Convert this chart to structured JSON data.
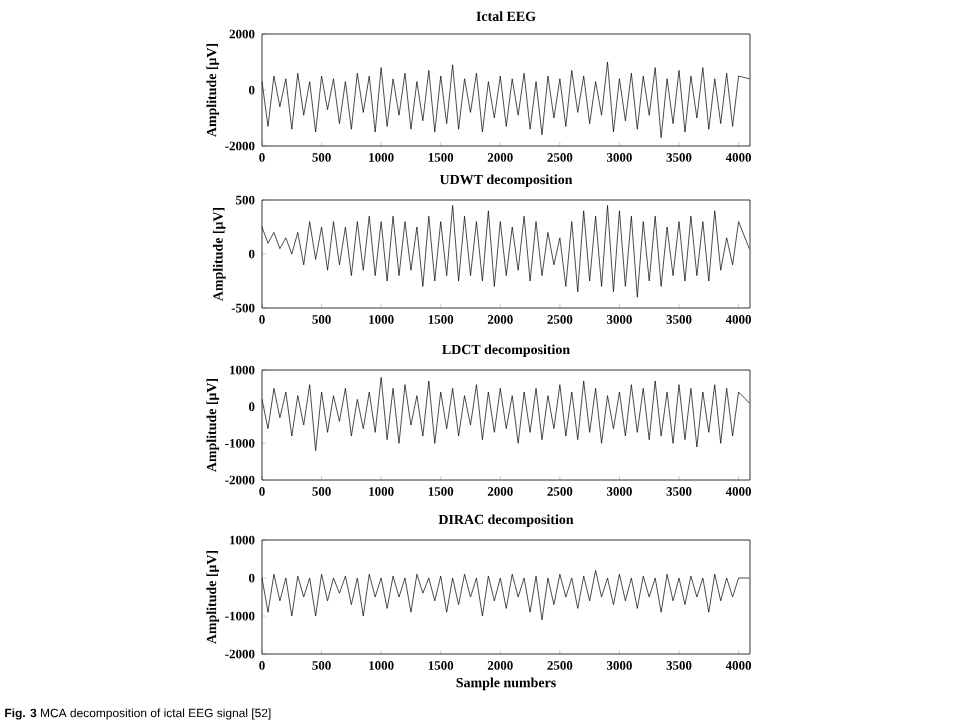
{
  "chart_data": [
    {
      "type": "line",
      "title": "Ictal EEG",
      "ylabel": "Amplitude [μV]",
      "color": "#000000",
      "xlim": [
        0,
        4096
      ],
      "ylim": [
        -2000,
        2000
      ],
      "xticks": [
        0,
        500,
        1000,
        1500,
        2000,
        2500,
        3000,
        3500,
        4000
      ],
      "yticks": [
        -2000,
        0,
        2000
      ],
      "x": [
        0,
        50,
        100,
        150,
        200,
        250,
        300,
        350,
        400,
        450,
        500,
        550,
        600,
        650,
        700,
        750,
        800,
        850,
        900,
        950,
        1000,
        1050,
        1100,
        1150,
        1200,
        1250,
        1300,
        1350,
        1400,
        1450,
        1500,
        1550,
        1600,
        1650,
        1700,
        1750,
        1800,
        1850,
        1900,
        1950,
        2000,
        2050,
        2100,
        2150,
        2200,
        2250,
        2300,
        2350,
        2400,
        2450,
        2500,
        2550,
        2600,
        2650,
        2700,
        2750,
        2800,
        2850,
        2900,
        2950,
        3000,
        3050,
        3100,
        3150,
        3200,
        3250,
        3300,
        3350,
        3400,
        3450,
        3500,
        3550,
        3600,
        3650,
        3700,
        3750,
        3800,
        3850,
        3900,
        3950,
        4000,
        4090
      ],
      "values": [
        300,
        -1300,
        500,
        -600,
        400,
        -1400,
        600,
        -900,
        300,
        -1500,
        500,
        -700,
        400,
        -1200,
        300,
        -1400,
        600,
        -800,
        500,
        -1500,
        800,
        -1300,
        400,
        -900,
        600,
        -1400,
        300,
        -1100,
        700,
        -1500,
        500,
        -1200,
        900,
        -1400,
        400,
        -800,
        600,
        -1500,
        300,
        -1000,
        500,
        -1300,
        400,
        -900,
        600,
        -1400,
        300,
        -1600,
        500,
        -1000,
        400,
        -1300,
        700,
        -800,
        500,
        -1200,
        300,
        -900,
        1000,
        -1500,
        400,
        -1100,
        600,
        -1400,
        500,
        -900,
        800,
        -1700,
        400,
        -1200,
        700,
        -1500,
        500,
        -1000,
        800,
        -1400,
        400,
        -1200,
        600,
        -1300,
        500,
        400
      ]
    },
    {
      "type": "line",
      "title": "UDWT decomposition",
      "ylabel": "Amplitude [μV]",
      "color": "#000000",
      "xlim": [
        0,
        4096
      ],
      "ylim": [
        -500,
        500
      ],
      "xticks": [
        0,
        500,
        1000,
        1500,
        2000,
        2500,
        3000,
        3500,
        4000
      ],
      "yticks": [
        -500,
        0,
        500
      ],
      "x": [
        0,
        50,
        100,
        150,
        200,
        250,
        300,
        350,
        400,
        450,
        500,
        550,
        600,
        650,
        700,
        750,
        800,
        850,
        900,
        950,
        1000,
        1050,
        1100,
        1150,
        1200,
        1250,
        1300,
        1350,
        1400,
        1450,
        1500,
        1550,
        1600,
        1650,
        1700,
        1750,
        1800,
        1850,
        1900,
        1950,
        2000,
        2050,
        2100,
        2150,
        2200,
        2250,
        2300,
        2350,
        2400,
        2450,
        2500,
        2550,
        2600,
        2650,
        2700,
        2750,
        2800,
        2850,
        2900,
        2950,
        3000,
        3050,
        3100,
        3150,
        3200,
        3250,
        3300,
        3350,
        3400,
        3450,
        3500,
        3550,
        3600,
        3650,
        3700,
        3750,
        3800,
        3850,
        3900,
        3950,
        4000,
        4090
      ],
      "values": [
        250,
        100,
        200,
        50,
        150,
        0,
        200,
        -100,
        300,
        -50,
        250,
        -150,
        300,
        -100,
        250,
        -200,
        300,
        -150,
        350,
        -200,
        300,
        -250,
        350,
        -200,
        300,
        -150,
        250,
        -300,
        350,
        -250,
        300,
        -200,
        450,
        -250,
        350,
        -200,
        300,
        -250,
        400,
        -300,
        300,
        -200,
        250,
        -150,
        350,
        -250,
        300,
        -200,
        200,
        -100,
        150,
        -300,
        300,
        -350,
        400,
        -250,
        350,
        -300,
        450,
        -350,
        400,
        -300,
        350,
        -400,
        300,
        -250,
        350,
        -300,
        250,
        -200,
        300,
        -250,
        350,
        -200,
        300,
        -250,
        400,
        -150,
        150,
        -100,
        300,
        50
      ]
    },
    {
      "type": "line",
      "title": "LDCT decomposition",
      "ylabel": "Amplitude [μV]",
      "color": "#000000",
      "xlim": [
        0,
        4096
      ],
      "ylim": [
        -2000,
        1000
      ],
      "xticks": [
        0,
        500,
        1000,
        1500,
        2000,
        2500,
        3000,
        3500,
        4000
      ],
      "yticks": [
        -2000,
        -1000,
        0,
        1000
      ],
      "x": [
        0,
        50,
        100,
        150,
        200,
        250,
        300,
        350,
        400,
        450,
        500,
        550,
        600,
        650,
        700,
        750,
        800,
        850,
        900,
        950,
        1000,
        1050,
        1100,
        1150,
        1200,
        1250,
        1300,
        1350,
        1400,
        1450,
        1500,
        1550,
        1600,
        1650,
        1700,
        1750,
        1800,
        1850,
        1900,
        1950,
        2000,
        2050,
        2100,
        2150,
        2200,
        2250,
        2300,
        2350,
        2400,
        2450,
        2500,
        2550,
        2600,
        2650,
        2700,
        2750,
        2800,
        2850,
        2900,
        2950,
        3000,
        3050,
        3100,
        3150,
        3200,
        3250,
        3300,
        3350,
        3400,
        3450,
        3500,
        3550,
        3600,
        3650,
        3700,
        3750,
        3800,
        3850,
        3900,
        3950,
        4000,
        4090
      ],
      "values": [
        200,
        -600,
        500,
        -300,
        400,
        -800,
        300,
        -500,
        600,
        -1200,
        400,
        -700,
        300,
        -400,
        500,
        -800,
        200,
        -600,
        400,
        -700,
        800,
        -900,
        500,
        -1000,
        600,
        -500,
        300,
        -800,
        700,
        -1000,
        400,
        -600,
        500,
        -800,
        300,
        -500,
        600,
        -900,
        400,
        -700,
        500,
        -600,
        300,
        -1000,
        400,
        -700,
        500,
        -900,
        300,
        -600,
        600,
        -800,
        400,
        -900,
        700,
        -700,
        500,
        -1000,
        300,
        -600,
        400,
        -800,
        600,
        -700,
        500,
        -900,
        700,
        -800,
        400,
        -1000,
        600,
        -900,
        500,
        -1100,
        400,
        -700,
        600,
        -1000,
        500,
        -800,
        400,
        100
      ]
    },
    {
      "type": "line",
      "title": "DIRAC decomposition",
      "ylabel": "Amplitude [μV]",
      "xlabel": "Sample numbers",
      "color": "#000000",
      "xlim": [
        0,
        4096
      ],
      "ylim": [
        -2000,
        1000
      ],
      "xticks": [
        0,
        500,
        1000,
        1500,
        2000,
        2500,
        3000,
        3500,
        4000
      ],
      "yticks": [
        -2000,
        -1000,
        0,
        1000
      ],
      "x": [
        0,
        50,
        100,
        150,
        200,
        250,
        300,
        350,
        400,
        450,
        500,
        550,
        600,
        650,
        700,
        750,
        800,
        850,
        900,
        950,
        1000,
        1050,
        1100,
        1150,
        1200,
        1250,
        1300,
        1350,
        1400,
        1450,
        1500,
        1550,
        1600,
        1650,
        1700,
        1750,
        1800,
        1850,
        1900,
        1950,
        2000,
        2050,
        2100,
        2150,
        2200,
        2250,
        2300,
        2350,
        2400,
        2450,
        2500,
        2550,
        2600,
        2650,
        2700,
        2750,
        2800,
        2850,
        2900,
        2950,
        3000,
        3050,
        3100,
        3150,
        3200,
        3250,
        3300,
        3350,
        3400,
        3450,
        3500,
        3550,
        3600,
        3650,
        3700,
        3750,
        3800,
        3850,
        3900,
        3950,
        4000,
        4090
      ],
      "values": [
        0,
        -900,
        100,
        -600,
        0,
        -1000,
        50,
        -500,
        0,
        -1000,
        100,
        -600,
        0,
        -400,
        50,
        -700,
        0,
        -1000,
        100,
        -500,
        0,
        -800,
        50,
        -500,
        0,
        -900,
        100,
        -400,
        0,
        -600,
        50,
        -900,
        0,
        -700,
        100,
        -500,
        0,
        -1000,
        50,
        -600,
        0,
        -800,
        100,
        -500,
        0,
        -900,
        50,
        -1100,
        0,
        -700,
        100,
        -500,
        0,
        -800,
        50,
        -600,
        200,
        -500,
        0,
        -700,
        100,
        -600,
        0,
        -800,
        50,
        -500,
        0,
        -900,
        100,
        -600,
        0,
        -700,
        50,
        -500,
        0,
        -900,
        100,
        -600,
        0,
        -500,
        0,
        0
      ],
      "annotations": [
        "**Fig. 3** MCA decomposition of ictal EEG signal [52]"
      ]
    }
  ]
}
